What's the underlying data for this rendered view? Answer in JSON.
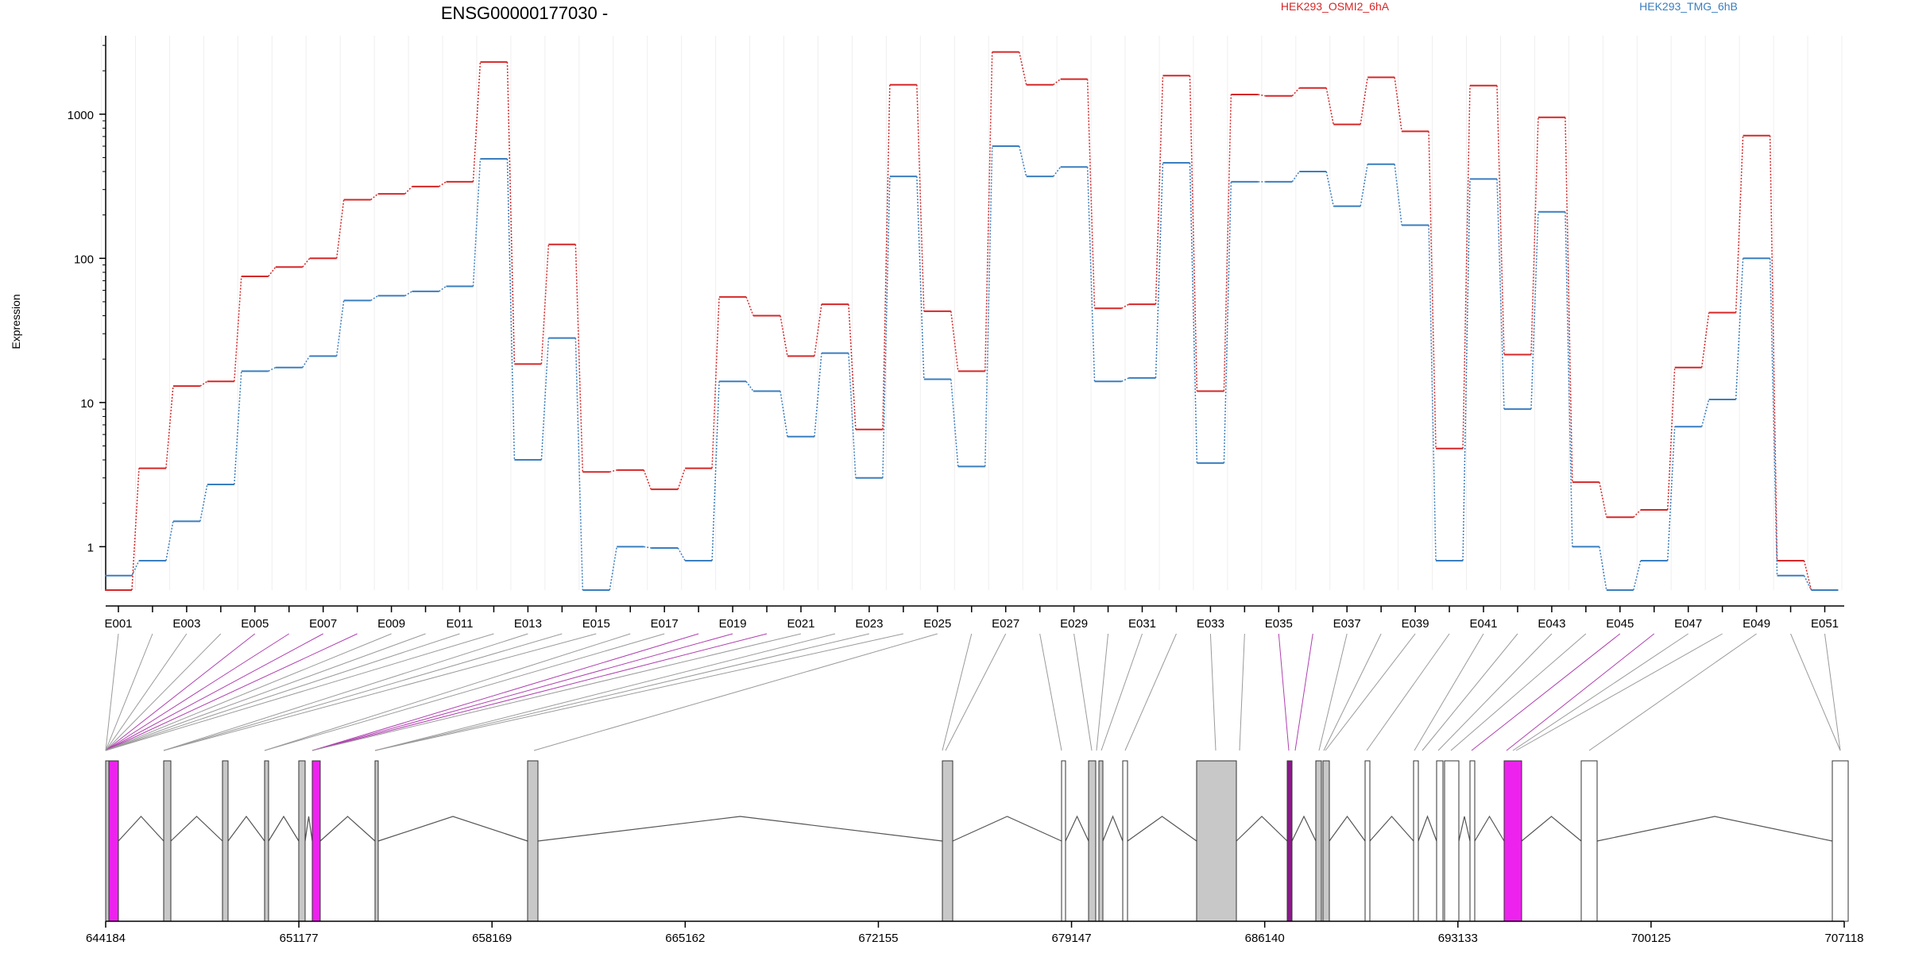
{
  "chart_data": {
    "type": "line",
    "title": "ENSG00000177030 -",
    "ylabel": "Expression",
    "yscale": "log",
    "ylim": [
      0.5,
      3500
    ],
    "yticks": [
      1,
      10,
      100,
      1000
    ],
    "ytick_labels": [
      "1",
      "10",
      "100",
      "1000"
    ],
    "legend_placement": "top",
    "grid": true,
    "exons": [
      "E001",
      "E002",
      "E003",
      "E004",
      "E005",
      "E006",
      "E007",
      "E008",
      "E009",
      "E010",
      "E011",
      "E012",
      "E013",
      "E014",
      "E015",
      "E016",
      "E017",
      "E018",
      "E019",
      "E020",
      "E021",
      "E022",
      "E023",
      "E024",
      "E025",
      "E026",
      "E027",
      "E028",
      "E029",
      "E030",
      "E031",
      "E032",
      "E033",
      "E034",
      "E035",
      "E036",
      "E037",
      "E038",
      "E039",
      "E040",
      "E041",
      "E042",
      "E043",
      "E044",
      "E045",
      "E046",
      "E047",
      "E048",
      "E049",
      "E050",
      "E051"
    ],
    "xtick_labels": [
      "E001",
      "E003",
      "E005",
      "E007",
      "E009",
      "E011",
      "E013",
      "E015",
      "E017",
      "E019",
      "E021",
      "E023",
      "E025",
      "E027",
      "E029",
      "E031",
      "E033",
      "E035",
      "E037",
      "E039",
      "E041",
      "E043",
      "E045",
      "E047",
      "E049",
      "E051"
    ],
    "series": [
      {
        "name": "HEK293_OSMI2_6hA",
        "color": "#d62728",
        "values": [
          0.5,
          3.5,
          13,
          14,
          75,
          87,
          100,
          255,
          280,
          315,
          340,
          2300,
          18.5,
          125,
          3.3,
          3.4,
          2.5,
          3.5,
          54,
          40,
          21,
          48,
          6.5,
          1600,
          43,
          16.5,
          2700,
          1600,
          1750,
          45,
          48,
          1850,
          12,
          1370,
          1340,
          1520,
          850,
          1800,
          760,
          4.8,
          1580,
          21.5,
          950,
          2.8,
          1.6,
          1.8,
          17.5,
          42,
          710,
          0.8,
          0.5
        ]
      },
      {
        "name": "HEK293_TMG_6hB",
        "color": "#3a7ebf",
        "values": [
          0.63,
          0.8,
          1.5,
          2.7,
          16.5,
          17.5,
          21,
          51,
          55,
          59,
          64,
          490,
          4,
          28,
          0.5,
          1,
          0.98,
          0.8,
          14,
          12,
          5.8,
          22,
          3,
          370,
          14.5,
          3.6,
          600,
          370,
          430,
          14,
          14.8,
          460,
          3.8,
          340,
          340,
          400,
          230,
          450,
          170,
          0.8,
          355,
          9,
          210,
          1,
          0.5,
          0.8,
          6.8,
          10.5,
          100,
          0.63,
          0.5
        ]
      }
    ],
    "genomic_axis": {
      "ticks": [
        644184,
        651177,
        658169,
        665162,
        672155,
        679147,
        686140,
        693133,
        700125,
        707118
      ],
      "tick_labels": [
        "644184",
        "651177",
        "658169",
        "665162",
        "672155",
        "679147",
        "686140",
        "693133",
        "700125",
        "707118"
      ]
    }
  }
}
